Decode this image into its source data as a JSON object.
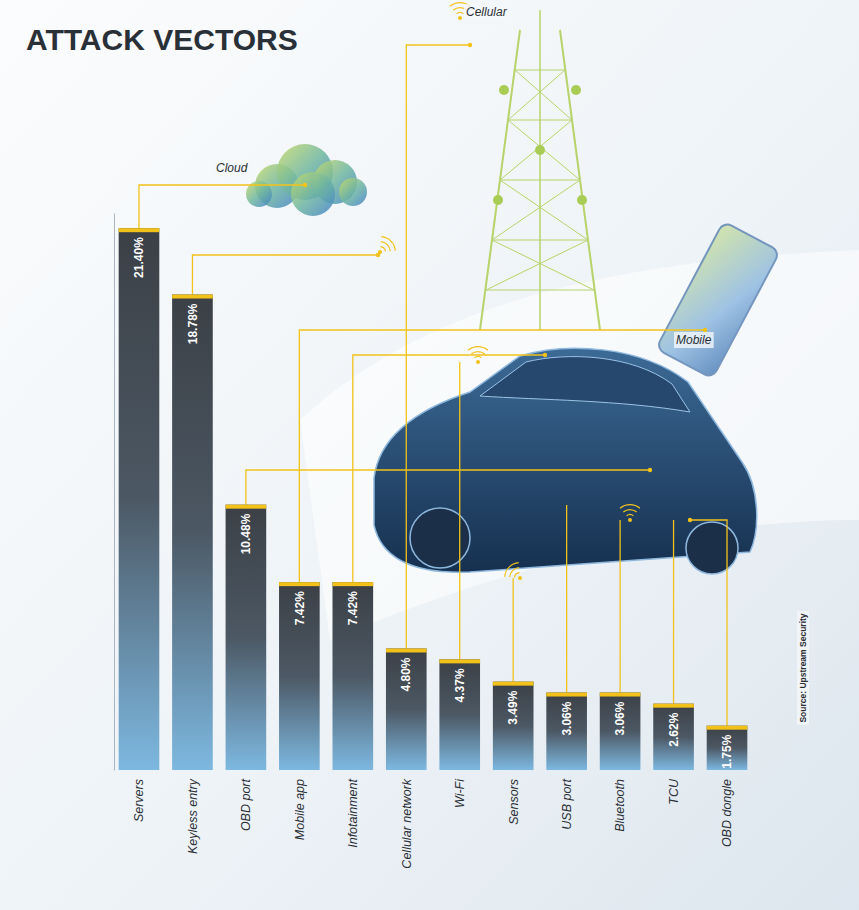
{
  "chart_data": {
    "type": "bar",
    "title": "ATTACK VECTORS",
    "categories": [
      "Servers",
      "Keyless entry",
      "OBD port",
      "Mobile app",
      "Infotainment",
      "Cellular network",
      "Wi-Fi",
      "Sensors",
      "USB port",
      "Bluetooth",
      "TCU",
      "OBD dongle"
    ],
    "values": [
      21.4,
      18.78,
      10.48,
      7.42,
      7.42,
      4.8,
      4.37,
      3.49,
      3.06,
      3.06,
      2.62,
      1.75
    ],
    "value_labels": [
      "21.40%",
      "18.78%",
      "10.48%",
      "7.42%",
      "7.42%",
      "4.80%",
      "4.37%",
      "3.49%",
      "3.06%",
      "3.06%",
      "2.62%",
      "1.75%"
    ],
    "color": "#3b4046",
    "ylim": [
      0,
      22
    ],
    "data_labels": true,
    "tick_labels": "x",
    "annotations": [
      "Cloud",
      "Cellular",
      "Mobile",
      "Source: Upstream Security"
    ]
  }
}
